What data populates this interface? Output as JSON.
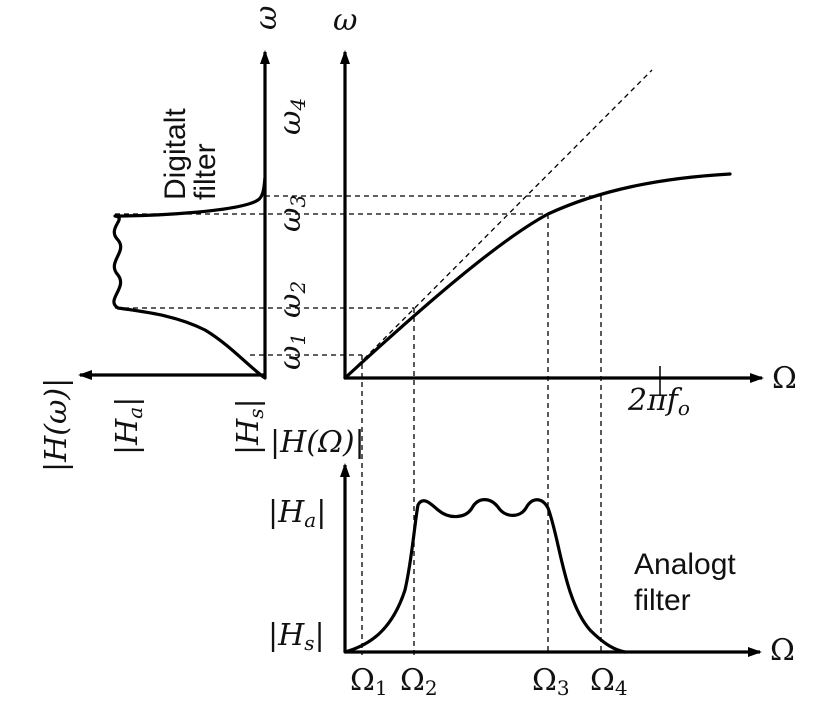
{
  "right_axis": {
    "y_label": "ω",
    "x_label": "Ω",
    "tick_label": "2πf",
    "tick_label_sub": "o"
  },
  "left_axis": {
    "y_label": "ω",
    "x_label": "|H(ω)|"
  },
  "bottom_axis": {
    "y_label": "|H(Ω)|",
    "x_label": "Ω"
  },
  "omega_ticks": [
    {
      "id": "w1",
      "base": "ω",
      "sub": "1"
    },
    {
      "id": "w2",
      "base": "ω",
      "sub": "2"
    },
    {
      "id": "w3",
      "base": "ω",
      "sub": "3"
    },
    {
      "id": "w4",
      "base": "ω",
      "sub": "4"
    }
  ],
  "Omega_ticks": [
    {
      "id": "W1",
      "base": "Ω",
      "sub": "1"
    },
    {
      "id": "W2",
      "base": "Ω",
      "sub": "2"
    },
    {
      "id": "W3",
      "base": "Ω",
      "sub": "3"
    },
    {
      "id": "W4",
      "base": "Ω",
      "sub": "4"
    }
  ],
  "left_levels": {
    "Ha": "|H",
    "Ha_sub": "a",
    "Hs": "|H",
    "Hs_sub": "s"
  },
  "bottom_levels": {
    "Ha": "|H",
    "Ha_sub": "a",
    "Hs": "|H",
    "Hs_sub": "s"
  },
  "captions": {
    "digital_line1": "Digitalt",
    "digital_line2": "filter",
    "analog_line1": "Analogt",
    "analog_line2": "filter"
  }
}
